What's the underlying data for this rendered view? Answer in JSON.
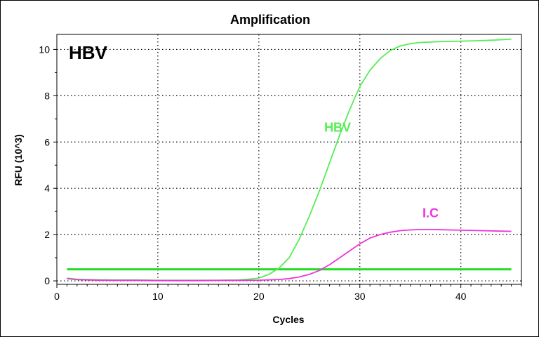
{
  "chart_data": {
    "type": "line",
    "title": "Amplification",
    "xlabel": "Cycles",
    "ylabel": "RFU (10^3)",
    "xlim": [
      0,
      46
    ],
    "ylim": [
      -0.15,
      10.65
    ],
    "x_ticks": [
      0,
      10,
      20,
      30,
      40
    ],
    "y_ticks": [
      0,
      2,
      4,
      6,
      8,
      10
    ],
    "grid": true,
    "panel_label": "HBV",
    "threshold": {
      "value": 0.5,
      "color": "#22dd22"
    },
    "series": [
      {
        "name": "HBV",
        "color": "#55ee55",
        "label_at": [
          27.8,
          6.45
        ],
        "x": [
          1,
          2,
          4,
          6,
          8,
          10,
          12,
          14,
          16,
          18,
          19,
          20,
          21,
          22,
          23,
          24,
          25,
          26,
          27,
          28,
          29,
          30,
          31,
          32,
          33,
          34,
          35,
          36,
          37,
          38,
          40,
          42,
          44,
          45
        ],
        "y": [
          0.12,
          0.07,
          0.05,
          0.04,
          0.04,
          0.03,
          0.03,
          0.03,
          0.03,
          0.04,
          0.07,
          0.12,
          0.28,
          0.55,
          1.0,
          1.8,
          2.8,
          3.9,
          5.1,
          6.3,
          7.4,
          8.4,
          9.1,
          9.6,
          9.95,
          10.15,
          10.25,
          10.3,
          10.32,
          10.34,
          10.36,
          10.38,
          10.42,
          10.45
        ]
      },
      {
        "name": "I.C",
        "color": "#ee33dd",
        "label_at": [
          37,
          2.75
        ],
        "x": [
          1,
          2,
          4,
          6,
          8,
          10,
          12,
          14,
          16,
          18,
          20,
          22,
          23,
          24,
          25,
          26,
          27,
          28,
          29,
          30,
          31,
          32,
          33,
          34,
          35,
          36,
          37,
          38,
          40,
          42,
          44,
          45
        ],
        "y": [
          0.1,
          0.05,
          0.03,
          0.02,
          0.02,
          0.01,
          0.01,
          0.01,
          0.02,
          0.02,
          0.03,
          0.06,
          0.1,
          0.17,
          0.28,
          0.45,
          0.7,
          1.0,
          1.3,
          1.6,
          1.85,
          2.0,
          2.1,
          2.17,
          2.2,
          2.22,
          2.22,
          2.21,
          2.19,
          2.17,
          2.15,
          2.14
        ]
      }
    ]
  }
}
